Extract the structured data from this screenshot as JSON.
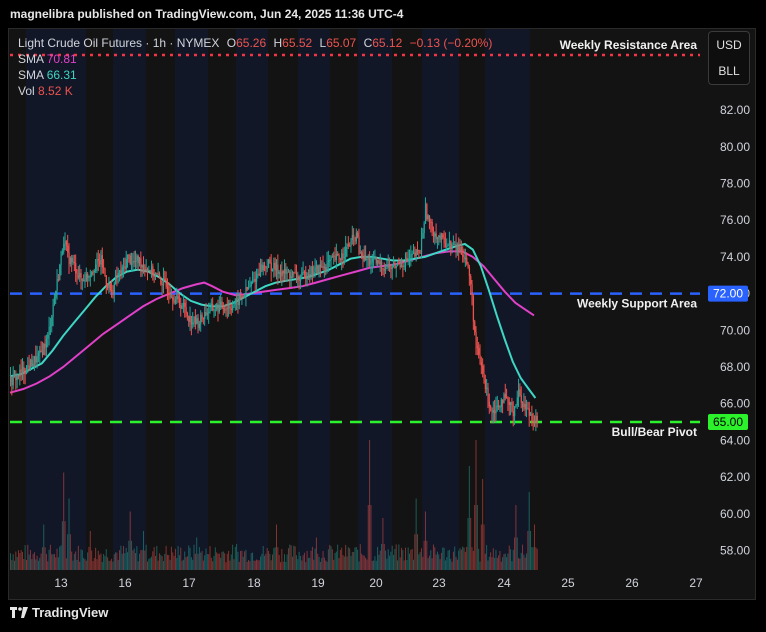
{
  "header": {
    "publisher_line": "magnelibra published on TradingView.com, Jun 24, 2025 11:36 UTC-4"
  },
  "legend": {
    "symbol": "Light Crude Oil Futures · 1h · NYMEX",
    "open_label": "O",
    "open": "65.26",
    "high_label": "H",
    "high": "65.52",
    "low_label": "L",
    "low": "65.07",
    "close_label": "C",
    "close": "65.12",
    "change": "−0.13 (−0.20%)",
    "sma1_label": "SMA",
    "sma1_value": "70.81",
    "sma2_label": "SMA",
    "sma2_value": "66.31",
    "vol_label": "Vol",
    "vol_value": "8.52 K"
  },
  "units": {
    "currency": "USD",
    "unit": "BLL"
  },
  "footer": {
    "brand": "TradingView"
  },
  "colors": {
    "up": "#26a69a",
    "down": "#ef5350",
    "sma_slow": "#e040c8",
    "sma_fast": "#3ed6c4",
    "resistance": "#f23645",
    "support": "#2962ff",
    "pivot": "#2cf22c",
    "axis_text": "#d1d4dc"
  },
  "chart_data": {
    "type": "candlestick",
    "x_tick_labels": [
      "13",
      "16",
      "17",
      "18",
      "19",
      "20",
      "23",
      "24",
      "25",
      "26",
      "27"
    ],
    "y_tick_labels": [
      "58.00",
      "60.00",
      "62.00",
      "64.00",
      "66.00",
      "68.00",
      "70.00",
      "72.00",
      "74.00",
      "76.00",
      "78.00",
      "80.00",
      "82.00"
    ],
    "ylim": [
      56.8,
      85.0
    ],
    "annotations": [
      {
        "label": "Weekly Resistance Area",
        "price": 85.0,
        "style": "dotted",
        "color": "#f23645"
      },
      {
        "label": "Weekly Support Area",
        "price": 72.0,
        "price_label": "72.00",
        "style": "dashed",
        "color": "#2962ff"
      },
      {
        "label": "Bull/Bear Pivot",
        "price": 65.0,
        "price_label": "65.00",
        "style": "dashed",
        "color": "#2cf22c"
      }
    ],
    "price_path": [
      [
        0,
        67.2
      ],
      [
        8,
        67.7
      ],
      [
        14,
        68.1
      ],
      [
        22,
        68.6
      ],
      [
        28,
        69.6
      ],
      [
        33,
        71.8
      ],
      [
        36,
        73.0
      ],
      [
        40,
        75.0
      ],
      [
        43,
        74.0
      ],
      [
        48,
        73.5
      ],
      [
        53,
        72.7
      ],
      [
        58,
        73.0
      ],
      [
        63,
        73.5
      ],
      [
        68,
        73.8
      ],
      [
        72,
        72.7
      ],
      [
        76,
        72.0
      ],
      [
        80,
        73.0
      ],
      [
        84,
        73.2
      ],
      [
        88,
        74.0
      ],
      [
        92,
        73.7
      ],
      [
        96,
        73.8
      ],
      [
        101,
        73.5
      ],
      [
        106,
        73.2
      ],
      [
        112,
        72.8
      ],
      [
        118,
        72.3
      ],
      [
        124,
        71.7
      ],
      [
        130,
        71.3
      ],
      [
        135,
        70.6
      ],
      [
        141,
        70.4
      ],
      [
        147,
        71.0
      ],
      [
        153,
        71.2
      ],
      [
        159,
        71.3
      ],
      [
        165,
        71.3
      ],
      [
        170,
        71.5
      ],
      [
        176,
        72.0
      ],
      [
        182,
        72.6
      ],
      [
        188,
        73.4
      ],
      [
        194,
        73.6
      ],
      [
        200,
        73.3
      ],
      [
        206,
        73.1
      ],
      [
        212,
        73.0
      ],
      [
        218,
        72.8
      ],
      [
        224,
        73.2
      ],
      [
        230,
        73.3
      ],
      [
        236,
        73.5
      ],
      [
        242,
        73.8
      ],
      [
        248,
        74.0
      ],
      [
        254,
        74.6
      ],
      [
        260,
        75.2
      ],
      [
        263,
        74.0
      ],
      [
        268,
        73.8
      ],
      [
        274,
        73.7
      ],
      [
        280,
        73.5
      ],
      [
        286,
        73.4
      ],
      [
        292,
        73.6
      ],
      [
        298,
        73.8
      ],
      [
        304,
        74.1
      ],
      [
        308,
        74.3
      ],
      [
        312,
        76.6
      ],
      [
        316,
        75.6
      ],
      [
        320,
        75.2
      ],
      [
        326,
        74.8
      ],
      [
        332,
        74.6
      ],
      [
        338,
        74.4
      ],
      [
        342,
        74.0
      ],
      [
        346,
        72.5
      ],
      [
        350,
        69.0
      ],
      [
        354,
        68.0
      ],
      [
        358,
        66.6
      ],
      [
        362,
        65.6
      ],
      [
        366,
        65.9
      ],
      [
        370,
        66.3
      ],
      [
        374,
        66.0
      ],
      [
        378,
        65.6
      ],
      [
        382,
        66.6
      ],
      [
        386,
        65.9
      ],
      [
        390,
        65.5
      ],
      [
        394,
        65.2
      ],
      [
        396,
        65.12
      ]
    ],
    "sma_fast_path": [
      [
        0,
        67.5
      ],
      [
        8,
        67.6
      ],
      [
        16,
        67.9
      ],
      [
        24,
        68.2
      ],
      [
        32,
        68.9
      ],
      [
        40,
        69.7
      ],
      [
        48,
        70.4
      ],
      [
        56,
        71.1
      ],
      [
        64,
        71.8
      ],
      [
        72,
        72.4
      ],
      [
        80,
        72.9
      ],
      [
        88,
        73.2
      ],
      [
        96,
        73.3
      ],
      [
        104,
        73.2
      ],
      [
        112,
        72.9
      ],
      [
        120,
        72.5
      ],
      [
        128,
        72.0
      ],
      [
        136,
        71.6
      ],
      [
        144,
        71.4
      ],
      [
        152,
        71.3
      ],
      [
        160,
        71.3
      ],
      [
        168,
        71.5
      ],
      [
        176,
        71.8
      ],
      [
        184,
        72.1
      ],
      [
        192,
        72.4
      ],
      [
        200,
        72.6
      ],
      [
        208,
        72.7
      ],
      [
        216,
        72.8
      ],
      [
        224,
        72.9
      ],
      [
        232,
        73.1
      ],
      [
        240,
        73.3
      ],
      [
        248,
        73.6
      ],
      [
        256,
        73.9
      ],
      [
        264,
        74.0
      ],
      [
        272,
        74.0
      ],
      [
        280,
        73.9
      ],
      [
        288,
        73.8
      ],
      [
        296,
        73.8
      ],
      [
        304,
        73.9
      ],
      [
        312,
        74.0
      ],
      [
        320,
        74.2
      ],
      [
        328,
        74.4
      ],
      [
        336,
        74.6
      ],
      [
        342,
        74.7
      ],
      [
        348,
        74.4
      ],
      [
        354,
        73.5
      ],
      [
        360,
        72.2
      ],
      [
        366,
        70.8
      ],
      [
        372,
        69.5
      ],
      [
        378,
        68.3
      ],
      [
        384,
        67.4
      ],
      [
        390,
        66.8
      ],
      [
        395,
        66.31
      ]
    ],
    "sma_slow_path": [
      [
        0,
        66.6
      ],
      [
        10,
        66.8
      ],
      [
        20,
        67.1
      ],
      [
        30,
        67.5
      ],
      [
        40,
        68.0
      ],
      [
        50,
        68.6
      ],
      [
        60,
        69.2
      ],
      [
        70,
        69.8
      ],
      [
        80,
        70.3
      ],
      [
        90,
        70.8
      ],
      [
        100,
        71.3
      ],
      [
        110,
        71.7
      ],
      [
        120,
        72.0
      ],
      [
        130,
        72.3
      ],
      [
        140,
        72.5
      ],
      [
        146,
        72.6
      ],
      [
        152,
        72.4
      ],
      [
        160,
        72.1
      ],
      [
        170,
        71.9
      ],
      [
        180,
        72.0
      ],
      [
        190,
        72.1
      ],
      [
        200,
        72.2
      ],
      [
        210,
        72.3
      ],
      [
        220,
        72.4
      ],
      [
        230,
        72.6
      ],
      [
        240,
        72.8
      ],
      [
        250,
        73.0
      ],
      [
        260,
        73.2
      ],
      [
        270,
        73.4
      ],
      [
        280,
        73.5
      ],
      [
        290,
        73.6
      ],
      [
        300,
        73.8
      ],
      [
        310,
        74.0
      ],
      [
        320,
        74.2
      ],
      [
        330,
        74.3
      ],
      [
        340,
        74.3
      ],
      [
        348,
        74.0
      ],
      [
        356,
        73.5
      ],
      [
        364,
        72.8
      ],
      [
        372,
        72.1
      ],
      [
        380,
        71.5
      ],
      [
        388,
        71.1
      ],
      [
        394,
        70.81
      ]
    ],
    "volume_spikes": [
      [
        25,
        0.35
      ],
      [
        40,
        0.75
      ],
      [
        44,
        0.55
      ],
      [
        60,
        0.3
      ],
      [
        90,
        0.45
      ],
      [
        100,
        0.3
      ],
      [
        140,
        0.25
      ],
      [
        170,
        0.2
      ],
      [
        200,
        0.35
      ],
      [
        230,
        0.25
      ],
      [
        270,
        1.0
      ],
      [
        280,
        0.4
      ],
      [
        305,
        0.55
      ],
      [
        312,
        0.45
      ],
      [
        345,
        0.8
      ],
      [
        350,
        1.0
      ],
      [
        355,
        0.7
      ],
      [
        380,
        0.5
      ],
      [
        390,
        0.6
      ],
      [
        394,
        0.35
      ]
    ]
  }
}
